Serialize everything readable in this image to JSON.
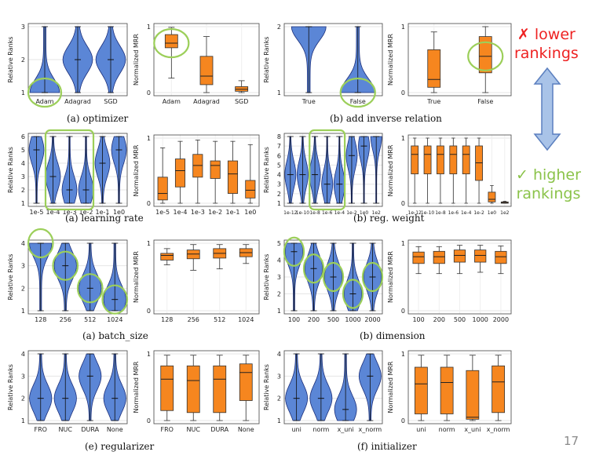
{
  "colors": {
    "violin_fill": "#5b86d6",
    "violin_edge": "#1c2f7a",
    "box_fill": "#f6861f",
    "box_edge": "#333333",
    "highlight": "#9ccf5a",
    "lower": "#ee2222",
    "higher": "#8bc34a",
    "arrow_fill": "#a9c3e8",
    "arrow_edge": "#5b7fbf",
    "pagenum": "#8a8a8a"
  },
  "legend": {
    "lower_mark": "✗",
    "lower_text": "lower",
    "lower_text2": "rankings",
    "higher_mark": "✓",
    "higher_text": "higher",
    "higher_text2": "rankings"
  },
  "page_number": "17",
  "captions": {
    "r1l": "(a)  optimizer",
    "r1r": "(b)  add inverse relation",
    "r2l": "(a)  learning rate",
    "r2r": "(b)  reg. weight",
    "r3l": "(a)  batch_size",
    "r3r": "(b)  dimension",
    "r4l": "(e)  regularizer",
    "r4r": "(f)  initializer"
  },
  "chart_data": [
    {
      "id": "optimizer_ranks",
      "type": "violin",
      "ylabel": "Relative Ranks",
      "ylim": [
        1,
        3
      ],
      "yticks": [
        1,
        2,
        3
      ],
      "categories": [
        "Adam",
        "Adagrad",
        "SGD"
      ],
      "medians": [
        1,
        2,
        2
      ],
      "highlight": [
        "Adam"
      ]
    },
    {
      "id": "optimizer_mrr",
      "type": "box",
      "ylabel": "Normalized MRR",
      "ylim": [
        0,
        1
      ],
      "yticks": [
        "0",
        "1"
      ],
      "categories": [
        "Adam",
        "Adagrad",
        "SGD"
      ],
      "boxes": [
        [
          0.22,
          0.68,
          0.75,
          0.88,
          0.99
        ],
        [
          0,
          0.12,
          0.25,
          0.55,
          0.85
        ],
        [
          0,
          0.02,
          0.05,
          0.09,
          0.18
        ]
      ],
      "highlight": [
        "Adam"
      ]
    },
    {
      "id": "inverse_ranks",
      "type": "violin",
      "ylabel": "Relative Ranks",
      "ylim": [
        1,
        2
      ],
      "yticks": [
        1,
        2
      ],
      "categories": [
        "True",
        "False"
      ],
      "medians": [
        2,
        1
      ],
      "highlight": [
        "False"
      ]
    },
    {
      "id": "inverse_mrr",
      "type": "box",
      "ylabel": "Normalized MRR",
      "ylim": [
        0,
        1
      ],
      "yticks": [
        "0",
        "1"
      ],
      "categories": [
        "True",
        "False"
      ],
      "boxes": [
        [
          0,
          0.08,
          0.2,
          0.65,
          0.92
        ],
        [
          0,
          0.3,
          0.55,
          0.85,
          1.0
        ]
      ],
      "highlight": [
        "False"
      ]
    },
    {
      "id": "lr_ranks",
      "type": "violin",
      "ylabel": "Relative Ranks",
      "ylim": [
        1,
        6
      ],
      "yticks": [
        1,
        2,
        3,
        4,
        5,
        6
      ],
      "categories": [
        "1e-5",
        "1e-4",
        "1e-3",
        "1e-2",
        "1e-1",
        "1e0"
      ],
      "medians": [
        5,
        3,
        2,
        2,
        4,
        5
      ],
      "highlight": [
        "1e-4",
        "1e-3",
        "1e-2"
      ]
    },
    {
      "id": "lr_mrr",
      "type": "box",
      "ylabel": "Normalized MRR",
      "ylim": [
        0,
        1
      ],
      "yticks": [
        "0",
        "1"
      ],
      "categories": [
        "1e-5",
        "1e-4",
        "1e-3",
        "1e-2",
        "1e-1",
        "1e0"
      ],
      "boxes": [
        [
          0,
          0.05,
          0.15,
          0.4,
          0.85
        ],
        [
          0,
          0.25,
          0.5,
          0.68,
          0.95
        ],
        [
          0,
          0.4,
          0.58,
          0.75,
          0.97
        ],
        [
          0,
          0.38,
          0.58,
          0.65,
          0.95
        ],
        [
          0,
          0.15,
          0.45,
          0.65,
          0.95
        ],
        [
          0,
          0.08,
          0.2,
          0.35,
          0.9
        ]
      ],
      "highlight": []
    },
    {
      "id": "regw_ranks",
      "type": "violin",
      "ylabel": "Relative Ranks",
      "ylim": [
        1,
        8
      ],
      "yticks": [
        1,
        2,
        3,
        4,
        5,
        6,
        7,
        8
      ],
      "categories": [
        "1e-12",
        "1e-10",
        "1e-8",
        "1e-6",
        "1e-4",
        "1e-2",
        "1e0",
        "1e2"
      ],
      "medians": [
        4,
        4,
        4,
        3,
        3,
        6,
        7,
        8
      ],
      "highlight": [
        "1e-8",
        "1e-6",
        "1e-4"
      ]
    },
    {
      "id": "regw_mrr",
      "type": "box",
      "ylabel": "Normalized MRR",
      "ylim": [
        0,
        1
      ],
      "yticks": [
        "0",
        "1"
      ],
      "categories": [
        "1e-12",
        "1e-10",
        "1e-8",
        "1e-6",
        "1e-4",
        "1e-2",
        "1e0",
        "1e2"
      ],
      "boxes": [
        [
          0,
          0.45,
          0.75,
          0.88,
          1.0
        ],
        [
          0,
          0.45,
          0.75,
          0.88,
          1.0
        ],
        [
          0,
          0.45,
          0.75,
          0.88,
          1.0
        ],
        [
          0,
          0.45,
          0.75,
          0.88,
          1.0
        ],
        [
          0,
          0.45,
          0.75,
          0.88,
          1.0
        ],
        [
          0,
          0.35,
          0.62,
          0.88,
          1.0
        ],
        [
          0,
          0.02,
          0.06,
          0.17,
          0.27
        ],
        [
          0,
          0,
          0.01,
          0.02,
          0.03
        ]
      ],
      "highlight": []
    },
    {
      "id": "bs_ranks",
      "type": "violin",
      "ylabel": "Relative Ranks",
      "ylim": [
        1,
        4
      ],
      "yticks": [
        1,
        2,
        3,
        4
      ],
      "categories": [
        "128",
        "256",
        "512",
        "1024"
      ],
      "medians": [
        4,
        3,
        2,
        1.5
      ],
      "highlight": [
        "128",
        "256",
        "512",
        "1024"
      ]
    },
    {
      "id": "bs_mrr",
      "type": "box",
      "ylabel": "Normalized MRR",
      "ylim": [
        0,
        1
      ],
      "yticks": [
        "0",
        "1"
      ],
      "categories": [
        "128",
        "256",
        "512",
        "1024"
      ],
      "boxes": [
        [
          0.68,
          0.75,
          0.82,
          0.85,
          0.92
        ],
        [
          0.6,
          0.77,
          0.84,
          0.9,
          0.98
        ],
        [
          0.62,
          0.78,
          0.85,
          0.92,
          0.98
        ],
        [
          0.7,
          0.8,
          0.86,
          0.92,
          0.98
        ]
      ],
      "highlight": []
    },
    {
      "id": "dim_ranks",
      "type": "violin",
      "ylabel": "Relative Ranks",
      "ylim": [
        1,
        5
      ],
      "yticks": [
        1,
        2,
        3,
        4,
        5
      ],
      "categories": [
        "100",
        "200",
        "500",
        "1000",
        "2000"
      ],
      "medians": [
        4.5,
        3.5,
        3,
        2,
        3
      ],
      "highlight": [
        "100",
        "200",
        "500",
        "1000",
        "2000"
      ]
    },
    {
      "id": "dim_mrr",
      "type": "box",
      "ylabel": "Normalized MRR",
      "ylim": [
        0,
        1
      ],
      "yticks": [
        "0",
        "1"
      ],
      "categories": [
        "100",
        "200",
        "500",
        "1000",
        "2000"
      ],
      "boxes": [
        [
          0.55,
          0.7,
          0.8,
          0.87,
          0.95
        ],
        [
          0.55,
          0.7,
          0.8,
          0.88,
          0.95
        ],
        [
          0.55,
          0.72,
          0.82,
          0.9,
          0.97
        ],
        [
          0.57,
          0.72,
          0.82,
          0.9,
          0.97
        ],
        [
          0.55,
          0.7,
          0.8,
          0.88,
          0.96
        ]
      ],
      "highlight": []
    },
    {
      "id": "reg_ranks",
      "type": "violin",
      "ylabel": "Relative Ranks",
      "ylim": [
        1,
        4
      ],
      "yticks": [
        1,
        2,
        3,
        4
      ],
      "categories": [
        "FRO",
        "NUC",
        "DURA",
        "None"
      ],
      "medians": [
        2,
        2,
        3,
        2
      ],
      "highlight": []
    },
    {
      "id": "reg_mrr",
      "type": "box",
      "ylabel": "Normalized MRR",
      "ylim": [
        0,
        1
      ],
      "yticks": [
        "0",
        "1"
      ],
      "categories": [
        "FRO",
        "NUC",
        "DURA",
        "None"
      ],
      "boxes": [
        [
          0,
          0.15,
          0.62,
          0.82,
          0.98
        ],
        [
          0,
          0.12,
          0.6,
          0.82,
          0.98
        ],
        [
          0,
          0.12,
          0.62,
          0.82,
          0.98
        ],
        [
          0,
          0.3,
          0.72,
          0.85,
          0.98
        ]
      ],
      "highlight": []
    },
    {
      "id": "init_ranks",
      "type": "violin",
      "ylabel": "Relative Ranks",
      "ylim": [
        1,
        4
      ],
      "yticks": [
        1,
        2,
        3,
        4
      ],
      "categories": [
        "uni",
        "norm",
        "x_uni",
        "x_norm"
      ],
      "medians": [
        2,
        2,
        1.5,
        3
      ],
      "highlight": []
    },
    {
      "id": "init_mrr",
      "type": "box",
      "ylabel": "Normalized MRR",
      "ylim": [
        0,
        1
      ],
      "yticks": [
        "0",
        "1"
      ],
      "categories": [
        "uni",
        "norm",
        "x_uni",
        "x_norm"
      ],
      "boxes": [
        [
          0,
          0.1,
          0.55,
          0.8,
          0.98
        ],
        [
          0,
          0.1,
          0.57,
          0.8,
          0.98
        ],
        [
          0,
          0.02,
          0.05,
          0.75,
          0.98
        ],
        [
          0,
          0.12,
          0.58,
          0.82,
          0.98
        ]
      ],
      "highlight": []
    }
  ]
}
